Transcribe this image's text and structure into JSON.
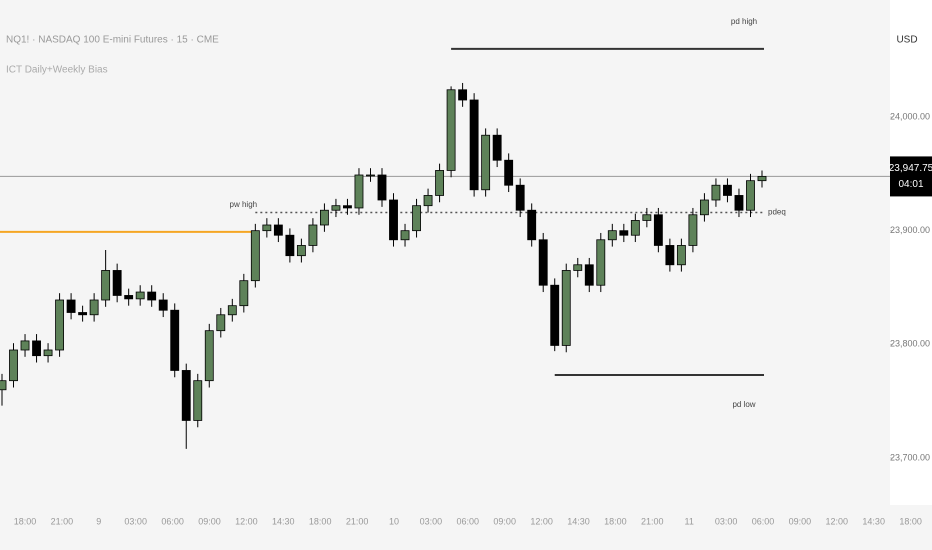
{
  "chart_data": {
    "type": "candlestick",
    "title": "NQ1! · NASDAQ 100 E-mini Futures · 15 · CME",
    "subtitle": "ICT Daily+Weekly Bias",
    "currency": "USD",
    "up_color": "#5e8259",
    "down_color": "#000000",
    "ylim": [
      23663,
      24103
    ],
    "yticks": [
      {
        "value": 24000,
        "label": "24,000.00"
      },
      {
        "value": 23900,
        "label": "23,900.00"
      },
      {
        "value": 23800,
        "label": "23,800.00"
      },
      {
        "value": 23700,
        "label": "23,700.00"
      }
    ],
    "xticks": [
      "18:00",
      "21:00",
      "9",
      "03:00",
      "06:00",
      "09:00",
      "12:00",
      "14:30",
      "18:00",
      "21:00",
      "10",
      "03:00",
      "06:00",
      "09:00",
      "12:00",
      "14:30",
      "18:00",
      "21:00",
      "11",
      "03:00",
      "06:00",
      "09:00",
      "12:00",
      "14:30",
      "18:00"
    ],
    "open": [
      23760,
      23768,
      23795,
      23803,
      23790,
      23795,
      23839,
      23828,
      23826,
      23839,
      23865,
      23843,
      23840,
      23846,
      23839,
      23830,
      23777,
      23733,
      23768,
      23812,
      23826,
      23834,
      23856,
      23900,
      23905,
      23896,
      23878,
      23887,
      23905,
      23918,
      23922,
      23920,
      23949,
      23949,
      23927,
      23892,
      23900,
      23922,
      23931,
      23953,
      24024,
      24015,
      23936,
      23984,
      23962,
      23940,
      23918,
      23892,
      23852,
      23799,
      23865,
      23870,
      23852,
      23892,
      23900,
      23896,
      23909,
      23914,
      23887,
      23870,
      23887,
      23914,
      23927,
      23940,
      23931,
      23918,
      23944
    ],
    "high": [
      23774,
      23801,
      23809,
      23809,
      23801,
      23845,
      23845,
      23834,
      23845,
      23883,
      23871,
      23849,
      23852,
      23852,
      23845,
      23836,
      23783,
      23774,
      23818,
      23832,
      23840,
      23862,
      23906,
      23911,
      23911,
      23902,
      23893,
      23911,
      23924,
      23928,
      23928,
      23955,
      23955,
      23955,
      23933,
      23906,
      23928,
      23937,
      23959,
      24027,
      24030,
      24021,
      23990,
      23990,
      23968,
      23946,
      23924,
      23898,
      23858,
      23871,
      23876,
      23876,
      23898,
      23906,
      23906,
      23915,
      23920,
      23920,
      23893,
      23893,
      23920,
      23933,
      23946,
      23946,
      23937,
      23950,
      23953
    ],
    "low": [
      23746,
      23762,
      23789,
      23784,
      23784,
      23789,
      23822,
      23820,
      23820,
      23833,
      23837,
      23834,
      23834,
      23833,
      23824,
      23771,
      23708,
      23727,
      23762,
      23806,
      23820,
      23828,
      23850,
      23894,
      23890,
      23872,
      23872,
      23881,
      23899,
      23912,
      23914,
      23914,
      23943,
      23921,
      23886,
      23886,
      23894,
      23916,
      23925,
      23947,
      24009,
      23930,
      23930,
      23956,
      23934,
      23912,
      23886,
      23846,
      23794,
      23793,
      23859,
      23846,
      23846,
      23886,
      23890,
      23890,
      23903,
      23881,
      23864,
      23864,
      23881,
      23908,
      23921,
      23925,
      23912,
      23912,
      23938
    ],
    "close": [
      23768,
      23795,
      23803,
      23790,
      23795,
      23839,
      23828,
      23826,
      23839,
      23865,
      23843,
      23840,
      23846,
      23839,
      23830,
      23777,
      23733,
      23768,
      23812,
      23826,
      23834,
      23856,
      23900,
      23905,
      23896,
      23878,
      23887,
      23905,
      23918,
      23922,
      23920,
      23949,
      23949,
      23927,
      23892,
      23900,
      23922,
      23931,
      23953,
      24024,
      24015,
      23936,
      23984,
      23962,
      23940,
      23918,
      23892,
      23852,
      23799,
      23865,
      23870,
      23852,
      23892,
      23900,
      23896,
      23909,
      23914,
      23887,
      23870,
      23887,
      23914,
      23927,
      23940,
      23931,
      23918,
      23944,
      23947.75
    ],
    "levels": [
      {
        "name": "pd high",
        "value": 24060,
        "start": 39,
        "end": 66,
        "color": "#333333",
        "style": "solid"
      },
      {
        "name": "pw high",
        "value": 23899,
        "start": 0,
        "end": 22,
        "color": "#f5a623",
        "style": "solid"
      },
      {
        "name": "pdeq",
        "value": 23916,
        "start": 22,
        "end": 66,
        "color": "#555555",
        "style": "dotted"
      },
      {
        "name": "pd low",
        "value": 23773,
        "start": 48,
        "end": 66,
        "color": "#333333",
        "style": "solid"
      }
    ],
    "last_price": {
      "value": 23947.75,
      "label": "23,947.75"
    },
    "countdown": "04:01"
  }
}
